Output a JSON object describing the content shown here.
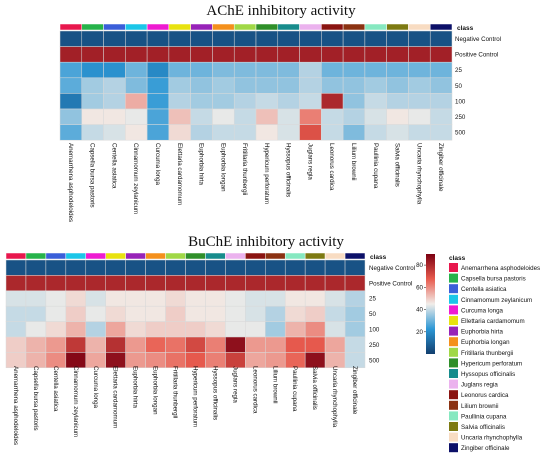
{
  "chart_data": [
    {
      "type": "heatmap",
      "title": "AChE inhibitory activity",
      "annotation_label": "class",
      "rows": [
        "Negative Control",
        "Positive Control",
        "25",
        "50",
        "100",
        "250",
        "500"
      ],
      "columns": [
        "Anemarrhena asphodeloides",
        "Capsella bursa pastoris",
        "Centella asiatica",
        "Cinnamomum zeylanicum",
        "Curcuma longa",
        "Elettaria cardamomum",
        "Euphorbia hirta",
        "Euphorbia longan",
        "Fritillaria thunbergii",
        "Hypericum perforatum",
        "Hyssopus officinalis",
        "Juglans regia",
        "Leonorus cardica",
        "Lilium brownii",
        "Paullinia cupana",
        "Salvia officinalis",
        "Uncaria rhynchophylla",
        "Zingiber officinale"
      ],
      "values": [
        [
          5,
          5,
          5,
          5,
          5,
          5,
          5,
          5,
          5,
          5,
          5,
          5,
          5,
          5,
          5,
          5,
          5,
          5
        ],
        [
          82,
          82,
          82,
          82,
          82,
          82,
          82,
          82,
          82,
          82,
          82,
          82,
          82,
          82,
          82,
          82,
          82,
          82
        ],
        [
          26,
          21,
          21,
          30,
          19,
          30,
          30,
          32,
          32,
          32,
          32,
          38,
          30,
          30,
          30,
          30,
          30,
          30
        ],
        [
          28,
          36,
          38,
          32,
          24,
          36,
          34,
          36,
          34,
          34,
          34,
          38,
          34,
          34,
          36,
          34,
          36,
          34
        ],
        [
          15,
          36,
          38,
          55,
          24,
          38,
          36,
          36,
          38,
          40,
          38,
          40,
          80,
          34,
          40,
          38,
          38,
          38
        ],
        [
          34,
          46,
          46,
          44,
          26,
          52,
          40,
          44,
          40,
          52,
          42,
          62,
          40,
          38,
          42,
          46,
          44,
          40
        ],
        [
          28,
          40,
          42,
          46,
          26,
          48,
          38,
          40,
          40,
          46,
          42,
          70,
          40,
          32,
          40,
          42,
          40,
          40
        ]
      ]
    },
    {
      "type": "heatmap",
      "title": "BuChE inhibitory activity",
      "annotation_label": "class",
      "rows": [
        "Negative Control",
        "Positive Control",
        "25",
        "50",
        "100",
        "250",
        "500"
      ],
      "columns": [
        "Anemarrhena asphodeloides",
        "Capsella bursa pastoris",
        "Centella asiatica",
        "Cinnamomum zeylanicum",
        "Curcuma longa",
        "Elettaria cardamomum",
        "Euphorbia hirta",
        "Euphorbia longan",
        "Fritillaria thunbergii",
        "Hypericum perforatum",
        "Hyssopus officinalis",
        "Juglans regia",
        "Leonorus cardica",
        "Lilium brownii",
        "Paullinia cupana",
        "Salvia officinalis",
        "Uncaria rhynchophylla",
        "Zingiber officinale"
      ],
      "values": [
        [
          5,
          5,
          5,
          5,
          5,
          5,
          5,
          5,
          5,
          5,
          5,
          5,
          5,
          5,
          5,
          5,
          5,
          5
        ],
        [
          80,
          80,
          80,
          80,
          80,
          80,
          80,
          80,
          80,
          80,
          80,
          80,
          80,
          80,
          80,
          80,
          80,
          80
        ],
        [
          42,
          42,
          44,
          48,
          42,
          46,
          46,
          46,
          48,
          46,
          46,
          44,
          42,
          42,
          46,
          46,
          42,
          38
        ],
        [
          40,
          40,
          44,
          50,
          44,
          48,
          46,
          46,
          50,
          46,
          46,
          44,
          42,
          38,
          48,
          50,
          40,
          36
        ],
        [
          40,
          44,
          48,
          54,
          38,
          56,
          48,
          50,
          50,
          50,
          48,
          44,
          44,
          36,
          54,
          60,
          42,
          36
        ],
        [
          50,
          54,
          58,
          76,
          54,
          78,
          58,
          66,
          64,
          72,
          62,
          86,
          58,
          58,
          68,
          68,
          56,
          40
        ],
        [
          50,
          54,
          60,
          88,
          56,
          86,
          58,
          60,
          64,
          68,
          62,
          74,
          56,
          58,
          66,
          86,
          54,
          40
        ]
      ]
    }
  ],
  "legend": {
    "title": "class",
    "items": [
      "Anemarrhena asphodeloides",
      "Capsella bursa pastoris",
      "Centella asiatica",
      "Cinnamomum zeylanicum",
      "Curcuma longa",
      "Ellettaria cardamomum",
      "Euphorbia hirta",
      "Euphorbia longan",
      "Fritillaria thunbergii",
      "Hypericum perforatum",
      "Hyssopus officinalis",
      "Juglans regia",
      "Leonorus cardica",
      "Lilium brownii",
      "Paullinia cupana",
      "Salvia officinalis",
      "Uncaria rhynchophylla",
      "Zingiber officinale"
    ],
    "colors": [
      "#e8174d",
      "#26b34a",
      "#3a5fd9",
      "#1bc6e8",
      "#ee1bd1",
      "#e8e20f",
      "#9723b8",
      "#f4901c",
      "#a0d846",
      "#2f8f29",
      "#178c8c",
      "#ebb2ee",
      "#8a1411",
      "#8b3212",
      "#86e8c0",
      "#7d7a12",
      "#f8dcc2",
      "#0c1068"
    ]
  },
  "color_scale": {
    "ticks": [
      "80",
      "60",
      "40",
      "20"
    ],
    "min": 0,
    "max": 90,
    "stops": [
      "#123e6e",
      "#2c97d5",
      "#f1ede9",
      "#e85b4e",
      "#7b0011"
    ]
  }
}
